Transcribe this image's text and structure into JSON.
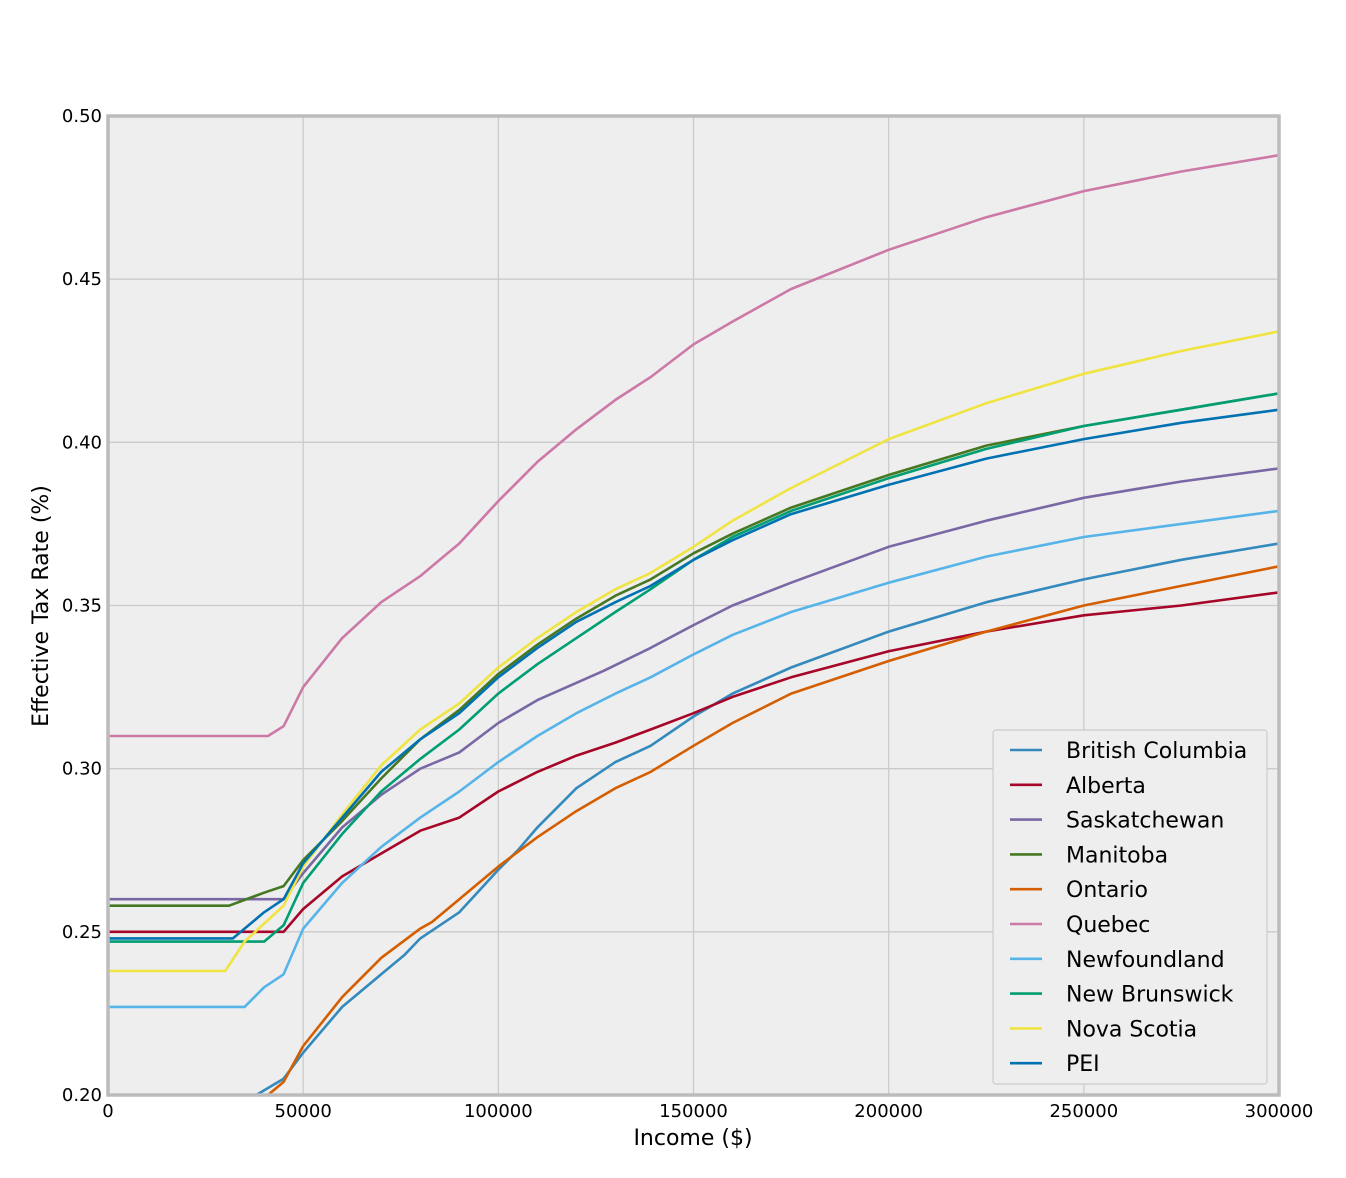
{
  "chart_data": {
    "type": "line",
    "xlabel": "Income ($)",
    "ylabel": "Effective Tax Rate (%)",
    "xlim": [
      0,
      300000
    ],
    "ylim": [
      0.2,
      0.5
    ],
    "xticks": [
      0,
      50000,
      100000,
      150000,
      200000,
      250000,
      300000
    ],
    "xtick_labels": [
      "0",
      "50000",
      "100000",
      "150000",
      "200000",
      "250000",
      "300000"
    ],
    "yticks": [
      0.2,
      0.25,
      0.3,
      0.35,
      0.4,
      0.45,
      0.5
    ],
    "ytick_labels": [
      "0.20",
      "0.25",
      "0.30",
      "0.35",
      "0.40",
      "0.45",
      "0.50"
    ],
    "grid": true,
    "legend_position": "lower-right",
    "series": [
      {
        "name": "British Columbia",
        "color": "#348ABD",
        "points": [
          [
            38000,
            0.2
          ],
          [
            45000,
            0.205
          ],
          [
            50000,
            0.213
          ],
          [
            60000,
            0.227
          ],
          [
            70000,
            0.237
          ],
          [
            76000,
            0.243
          ],
          [
            80000,
            0.248
          ],
          [
            90000,
            0.256
          ],
          [
            100000,
            0.269
          ],
          [
            105000,
            0.275
          ],
          [
            110000,
            0.282
          ],
          [
            120000,
            0.294
          ],
          [
            130000,
            0.302
          ],
          [
            139000,
            0.307
          ],
          [
            150000,
            0.316
          ],
          [
            160000,
            0.323
          ],
          [
            175000,
            0.331
          ],
          [
            200000,
            0.342
          ],
          [
            225000,
            0.351
          ],
          [
            250000,
            0.358
          ],
          [
            275000,
            0.364
          ],
          [
            300000,
            0.369
          ]
        ]
      },
      {
        "name": "Alberta",
        "color": "#A60628",
        "points": [
          [
            0,
            0.25
          ],
          [
            45000,
            0.25
          ],
          [
            50000,
            0.257
          ],
          [
            60000,
            0.267
          ],
          [
            70000,
            0.274
          ],
          [
            80000,
            0.281
          ],
          [
            90000,
            0.285
          ],
          [
            100000,
            0.293
          ],
          [
            110000,
            0.299
          ],
          [
            120000,
            0.304
          ],
          [
            130000,
            0.308
          ],
          [
            139000,
            0.312
          ],
          [
            150000,
            0.317
          ],
          [
            160000,
            0.322
          ],
          [
            175000,
            0.328
          ],
          [
            200000,
            0.336
          ],
          [
            225000,
            0.342
          ],
          [
            250000,
            0.347
          ],
          [
            275000,
            0.35
          ],
          [
            300000,
            0.354
          ]
        ]
      },
      {
        "name": "Saskatchewan",
        "color": "#7A68A6",
        "points": [
          [
            0,
            0.26
          ],
          [
            45000,
            0.26
          ],
          [
            50000,
            0.268
          ],
          [
            60000,
            0.282
          ],
          [
            70000,
            0.292
          ],
          [
            80000,
            0.3
          ],
          [
            90000,
            0.305
          ],
          [
            100000,
            0.314
          ],
          [
            110000,
            0.321
          ],
          [
            127000,
            0.33
          ],
          [
            139000,
            0.337
          ],
          [
            150000,
            0.344
          ],
          [
            160000,
            0.35
          ],
          [
            175000,
            0.357
          ],
          [
            200000,
            0.368
          ],
          [
            225000,
            0.376
          ],
          [
            250000,
            0.383
          ],
          [
            275000,
            0.388
          ],
          [
            300000,
            0.392
          ]
        ]
      },
      {
        "name": "Manitoba",
        "color": "#467821",
        "points": [
          [
            0,
            0.258
          ],
          [
            31000,
            0.258
          ],
          [
            40000,
            0.262
          ],
          [
            45000,
            0.264
          ],
          [
            50000,
            0.272
          ],
          [
            60000,
            0.284
          ],
          [
            70000,
            0.297
          ],
          [
            80000,
            0.309
          ],
          [
            90000,
            0.318
          ],
          [
            100000,
            0.329
          ],
          [
            110000,
            0.338
          ],
          [
            120000,
            0.346
          ],
          [
            130000,
            0.353
          ],
          [
            139000,
            0.358
          ],
          [
            150000,
            0.366
          ],
          [
            160000,
            0.372
          ],
          [
            175000,
            0.38
          ],
          [
            200000,
            0.39
          ],
          [
            225000,
            0.399
          ],
          [
            250000,
            0.405
          ],
          [
            275000,
            0.41
          ],
          [
            300000,
            0.415
          ]
        ]
      },
      {
        "name": "Ontario",
        "color": "#D55E00",
        "points": [
          [
            0,
            0.2
          ],
          [
            41000,
            0.2
          ],
          [
            45000,
            0.204
          ],
          [
            50000,
            0.215
          ],
          [
            60000,
            0.23
          ],
          [
            70000,
            0.242
          ],
          [
            80000,
            0.251
          ],
          [
            83000,
            0.253
          ],
          [
            90000,
            0.26
          ],
          [
            100000,
            0.27
          ],
          [
            110000,
            0.279
          ],
          [
            120000,
            0.287
          ],
          [
            130000,
            0.294
          ],
          [
            139000,
            0.299
          ],
          [
            150000,
            0.307
          ],
          [
            160000,
            0.314
          ],
          [
            175000,
            0.323
          ],
          [
            200000,
            0.333
          ],
          [
            225000,
            0.342
          ],
          [
            250000,
            0.35
          ],
          [
            275000,
            0.356
          ],
          [
            300000,
            0.362
          ]
        ]
      },
      {
        "name": "Quebec",
        "color": "#CC79A7",
        "points": [
          [
            0,
            0.31
          ],
          [
            41000,
            0.31
          ],
          [
            45000,
            0.313
          ],
          [
            50000,
            0.325
          ],
          [
            60000,
            0.34
          ],
          [
            70000,
            0.351
          ],
          [
            80000,
            0.359
          ],
          [
            83000,
            0.362
          ],
          [
            90000,
            0.369
          ],
          [
            100000,
            0.382
          ],
          [
            110000,
            0.394
          ],
          [
            120000,
            0.404
          ],
          [
            130000,
            0.413
          ],
          [
            139000,
            0.42
          ],
          [
            150000,
            0.43
          ],
          [
            160000,
            0.437
          ],
          [
            175000,
            0.447
          ],
          [
            200000,
            0.459
          ],
          [
            225000,
            0.469
          ],
          [
            250000,
            0.477
          ],
          [
            275000,
            0.483
          ],
          [
            300000,
            0.488
          ]
        ]
      },
      {
        "name": "Newfoundland",
        "color": "#56B4E9",
        "points": [
          [
            0,
            0.227
          ],
          [
            35000,
            0.227
          ],
          [
            40000,
            0.233
          ],
          [
            45000,
            0.237
          ],
          [
            50000,
            0.251
          ],
          [
            60000,
            0.265
          ],
          [
            70000,
            0.276
          ],
          [
            80000,
            0.285
          ],
          [
            90000,
            0.293
          ],
          [
            100000,
            0.302
          ],
          [
            110000,
            0.31
          ],
          [
            120000,
            0.317
          ],
          [
            130000,
            0.323
          ],
          [
            139000,
            0.328
          ],
          [
            150000,
            0.335
          ],
          [
            160000,
            0.341
          ],
          [
            175000,
            0.348
          ],
          [
            200000,
            0.357
          ],
          [
            225000,
            0.365
          ],
          [
            250000,
            0.371
          ],
          [
            275000,
            0.375
          ],
          [
            300000,
            0.379
          ]
        ]
      },
      {
        "name": "New Brunswick",
        "color": "#009E73",
        "points": [
          [
            0,
            0.247
          ],
          [
            40000,
            0.247
          ],
          [
            45000,
            0.252
          ],
          [
            50000,
            0.265
          ],
          [
            60000,
            0.28
          ],
          [
            70000,
            0.293
          ],
          [
            80000,
            0.303
          ],
          [
            90000,
            0.312
          ],
          [
            100000,
            0.323
          ],
          [
            110000,
            0.332
          ],
          [
            120000,
            0.34
          ],
          [
            130000,
            0.348
          ],
          [
            139000,
            0.355
          ],
          [
            150000,
            0.364
          ],
          [
            160000,
            0.371
          ],
          [
            175000,
            0.379
          ],
          [
            200000,
            0.389
          ],
          [
            225000,
            0.398
          ],
          [
            250000,
            0.405
          ],
          [
            275000,
            0.41
          ],
          [
            300000,
            0.415
          ]
        ]
      },
      {
        "name": "Nova Scotia",
        "color": "#F0E442",
        "points": [
          [
            0,
            0.238
          ],
          [
            30000,
            0.238
          ],
          [
            35000,
            0.247
          ],
          [
            45000,
            0.258
          ],
          [
            50000,
            0.27
          ],
          [
            60000,
            0.286
          ],
          [
            70000,
            0.301
          ],
          [
            80000,
            0.312
          ],
          [
            90000,
            0.32
          ],
          [
            100000,
            0.331
          ],
          [
            110000,
            0.34
          ],
          [
            120000,
            0.348
          ],
          [
            130000,
            0.355
          ],
          [
            139000,
            0.36
          ],
          [
            150000,
            0.368
          ],
          [
            160000,
            0.376
          ],
          [
            175000,
            0.386
          ],
          [
            200000,
            0.401
          ],
          [
            225000,
            0.412
          ],
          [
            250000,
            0.421
          ],
          [
            275000,
            0.428
          ],
          [
            300000,
            0.434
          ]
        ]
      },
      {
        "name": "PEI",
        "color": "#0072B2",
        "points": [
          [
            0,
            0.248
          ],
          [
            32000,
            0.248
          ],
          [
            40000,
            0.256
          ],
          [
            45000,
            0.26
          ],
          [
            50000,
            0.271
          ],
          [
            60000,
            0.285
          ],
          [
            70000,
            0.299
          ],
          [
            80000,
            0.309
          ],
          [
            90000,
            0.317
          ],
          [
            100000,
            0.328
          ],
          [
            110000,
            0.337
          ],
          [
            120000,
            0.345
          ],
          [
            130000,
            0.351
          ],
          [
            139000,
            0.356
          ],
          [
            150000,
            0.364
          ],
          [
            160000,
            0.37
          ],
          [
            175000,
            0.378
          ],
          [
            200000,
            0.387
          ],
          [
            225000,
            0.395
          ],
          [
            250000,
            0.401
          ],
          [
            275000,
            0.406
          ],
          [
            300000,
            0.41
          ]
        ]
      }
    ]
  }
}
